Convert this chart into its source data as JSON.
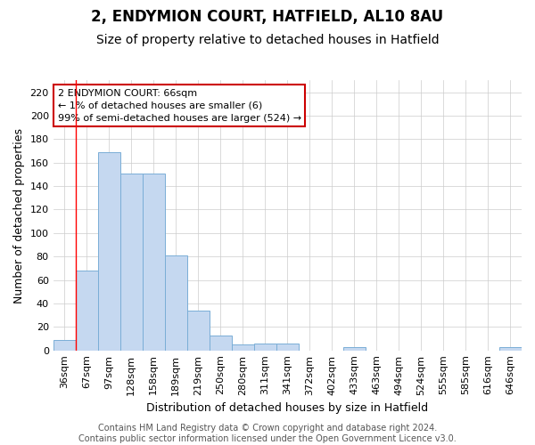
{
  "title": "2, ENDYMION COURT, HATFIELD, AL10 8AU",
  "subtitle": "Size of property relative to detached houses in Hatfield",
  "xlabel": "Distribution of detached houses by size in Hatfield",
  "ylabel": "Number of detached properties",
  "categories": [
    "36sqm",
    "67sqm",
    "97sqm",
    "128sqm",
    "158sqm",
    "189sqm",
    "219sqm",
    "250sqm",
    "280sqm",
    "311sqm",
    "341sqm",
    "372sqm",
    "402sqm",
    "433sqm",
    "463sqm",
    "494sqm",
    "524sqm",
    "555sqm",
    "585sqm",
    "616sqm",
    "646sqm"
  ],
  "values": [
    9,
    68,
    169,
    151,
    151,
    81,
    34,
    13,
    5,
    6,
    6,
    0,
    0,
    3,
    0,
    0,
    0,
    0,
    0,
    0,
    3
  ],
  "bar_color": "#c5d8f0",
  "bar_edge_color": "#7aaed6",
  "background_color": "#ffffff",
  "grid_color": "#cccccc",
  "red_line_index": 1,
  "annotation_line1": "2 ENDYMION COURT: 66sqm",
  "annotation_line2": "← 1% of detached houses are smaller (6)",
  "annotation_line3": "99% of semi-detached houses are larger (524) →",
  "annotation_box_color": "#ffffff",
  "annotation_box_edge": "#cc0000",
  "footer_text": "Contains HM Land Registry data © Crown copyright and database right 2024.\nContains public sector information licensed under the Open Government Licence v3.0.",
  "ylim": [
    0,
    230
  ],
  "yticks": [
    0,
    20,
    40,
    60,
    80,
    100,
    120,
    140,
    160,
    180,
    200,
    220
  ],
  "title_fontsize": 12,
  "subtitle_fontsize": 10,
  "ylabel_fontsize": 9,
  "xlabel_fontsize": 9,
  "tick_fontsize": 8,
  "annotation_fontsize": 8,
  "footer_fontsize": 7
}
